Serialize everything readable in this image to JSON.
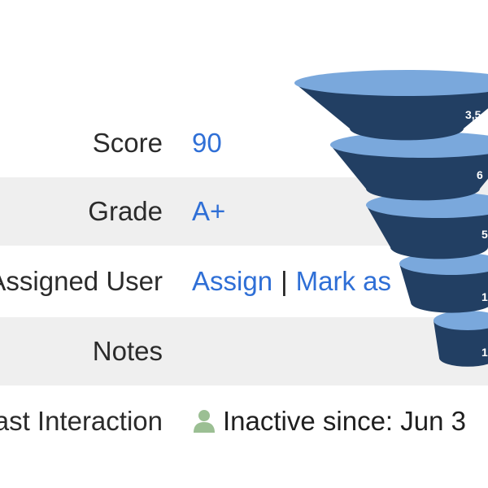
{
  "fields": {
    "score": {
      "label": "Score",
      "value": "90"
    },
    "grade": {
      "label": "Grade",
      "value": "A+"
    },
    "assigned_user": {
      "label": "Assigned User",
      "action_assign": "Assign",
      "separator": "|",
      "action_mark": "Mark as"
    },
    "notes": {
      "label": "Notes",
      "value": ""
    },
    "last_interaction": {
      "label": "Last Interaction",
      "icon": "user-icon",
      "value": "Inactive since: Jun 3"
    }
  },
  "funnel": {
    "colors": {
      "top": "#7aa8dc",
      "body": "#223f63"
    },
    "stages": [
      {
        "label": "3,5"
      },
      {
        "label": "6"
      },
      {
        "label": "5"
      },
      {
        "label": "1"
      },
      {
        "label": "1"
      }
    ]
  },
  "colors": {
    "link": "#2f6fd6",
    "label_text": "#2b2b2b",
    "row_shade": "#efefef",
    "icon_green": "#9bbf93"
  }
}
